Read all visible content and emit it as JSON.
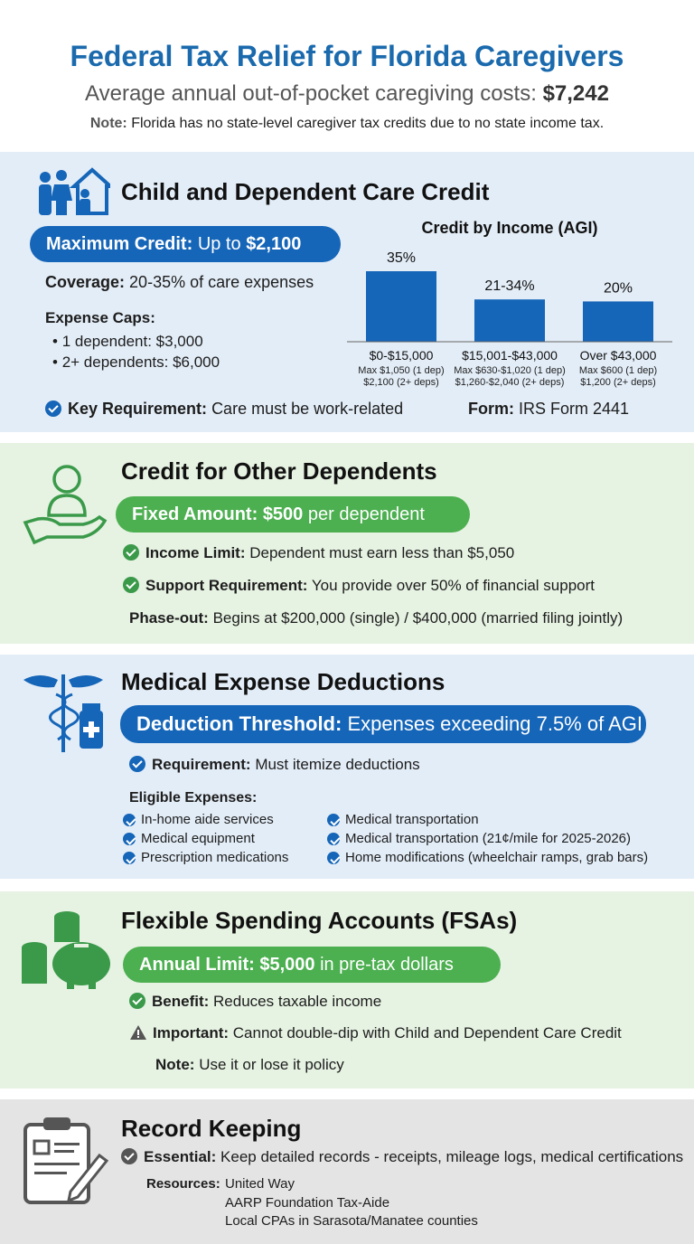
{
  "header": {
    "title": "Federal Tax Relief for Florida Caregivers",
    "subtitle": "Average annual out-of-pocket caregiving costs:",
    "subtitle_amount": "$7,242",
    "note_label": "Note:",
    "note": "Florida has no state-level caregiver tax credits due to no state income tax."
  },
  "child_care": {
    "heading": "Child and Dependent Care Credit",
    "max_label": "Maximum Credit:",
    "max_prefix": "Up to",
    "max_amount": "$2,100",
    "coverage_label": "Coverage:",
    "coverage": "20-35% of care expenses",
    "caps_label": "Expense Caps:",
    "caps": [
      "1 dependent: $3,000",
      "2+ dependents: $6,000"
    ],
    "requirement_label": "Key Requirement:",
    "requirement": "Care must be work-related",
    "form_label": "Form:",
    "form": "IRS Form 2441"
  },
  "chart_data": {
    "type": "bar",
    "title": "Credit by Income (AGI)",
    "categories": [
      "$0-$15,000",
      "$15,001-$43,000",
      "Over $43,000"
    ],
    "category_notes": [
      [
        "Max $1,050 (1 dep)",
        "$2,100 (2+ deps)"
      ],
      [
        "Max $630-$1,020 (1 dep)",
        "$1,260-$2,040 (2+ deps)"
      ],
      [
        "Max $600 (1 dep)",
        "$1,200 (2+ deps)"
      ]
    ],
    "values": [
      35,
      21,
      20
    ],
    "value_labels": [
      "35%",
      "21-34%",
      "20%"
    ],
    "color": "#1565b8"
  },
  "other_dependents": {
    "heading": "Credit for Other Dependents",
    "amount_label": "Fixed Amount:",
    "amount": "$500",
    "amount_suffix": "per dependent",
    "items": [
      {
        "label": "Income Limit:",
        "text": "Dependent must earn less than $5,050"
      },
      {
        "label": "Support Requirement:",
        "text": "You provide over 50% of financial support"
      }
    ],
    "phaseout_label": "Phase-out:",
    "phaseout": "Begins at $200,000 (single) / $400,000 (married filing jointly)"
  },
  "medical": {
    "heading": "Medical Expense Deductions",
    "threshold_label": "Deduction Threshold:",
    "threshold": "Expenses exceeding 7.5% of AGI",
    "requirement_label": "Requirement:",
    "requirement": "Must itemize deductions",
    "eligible_label": "Eligible Expenses:",
    "eligible_left": [
      "In-home aide services",
      "Medical equipment",
      "Prescription medications"
    ],
    "eligible_right": [
      "Medical transportation",
      "Medical transportation (21¢/mile for 2025-2026)",
      "Home modifications (wheelchair ramps, grab bars)"
    ]
  },
  "fsa": {
    "heading": "Flexible Spending Accounts (FSAs)",
    "limit_label": "Annual Limit:",
    "limit": "$5,000",
    "limit_suffix": "in pre-tax dollars",
    "benefit_label": "Benefit:",
    "benefit": "Reduces taxable income",
    "important_label": "Important:",
    "important": "Cannot double-dip with Child and Dependent Care Credit",
    "note_label": "Note:",
    "note": "Use it or lose it policy"
  },
  "records": {
    "heading": "Record Keeping",
    "essential_label": "Essential:",
    "essential": "Keep detailed records - receipts, mileage logs, medical certifications",
    "resources_label": "Resources:",
    "resources": [
      "United Way",
      "AARP Foundation Tax-Aide",
      "Local CPAs in Sarasota/Manatee counties"
    ]
  }
}
